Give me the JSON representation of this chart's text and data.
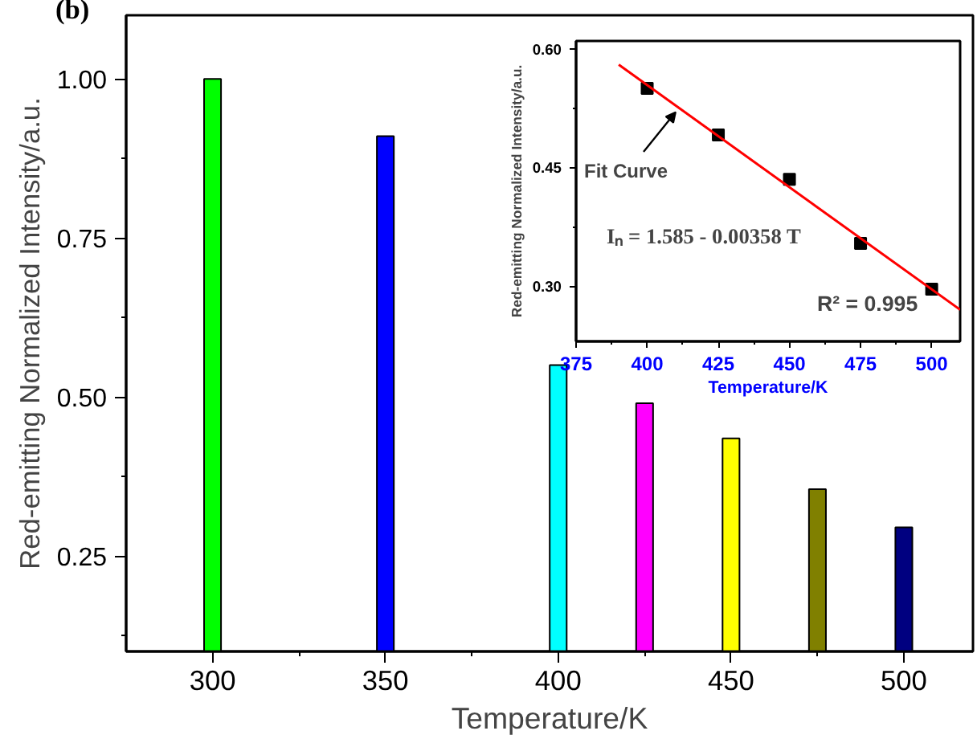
{
  "chart_data": [
    {
      "type": "bar",
      "title": "(b)",
      "xlabel": "Temperature/K",
      "ylabel": "Red-emitting Normalized Intensity/a.u.",
      "x": [
        300,
        350,
        400,
        425,
        450,
        475,
        500
      ],
      "values": [
        1.0,
        0.91,
        0.55,
        0.49,
        0.435,
        0.355,
        0.295
      ],
      "colors": [
        "#00ff00",
        "#0000ff",
        "#00ffff",
        "#ff00ff",
        "#ffff00",
        "#808000",
        "#000080"
      ],
      "xlim": [
        275,
        520
      ],
      "ylim": [
        0.1,
        1.1
      ],
      "xticks": [
        300,
        {
          "value": 325,
          "label": null
        },
        350,
        {
          "value": 375,
          "label": null
        },
        400,
        {
          "value": 425,
          "label": null
        },
        450,
        {
          "value": 475,
          "label": null
        },
        500
      ],
      "yticks": [
        {
          "value": 0.125,
          "label": null
        },
        {
          "value": 0.25,
          "label": "0.25"
        },
        {
          "value": 0.375,
          "label": null
        },
        {
          "value": 0.5,
          "label": "0.50"
        },
        {
          "value": 0.625,
          "label": null
        },
        {
          "value": 0.75,
          "label": "0.75"
        },
        {
          "value": 0.875,
          "label": null
        },
        {
          "value": 1.0,
          "label": "1.00"
        }
      ],
      "grid": false
    },
    {
      "type": "scatter",
      "xlabel": "Temperature/K",
      "ylabel": "Red-emitting Normalized Intensity/a.u.",
      "series": [
        {
          "type": "scatter",
          "color": "#000000",
          "marker": "square",
          "x": [
            400,
            425,
            450,
            475,
            500
          ],
          "values": [
            0.55,
            0.491,
            0.435,
            0.354,
            0.296
          ]
        },
        {
          "type": "line",
          "color": "#ff0000",
          "line_style": "solid",
          "x": [
            390,
            510
          ],
          "values": [
            0.58,
            0.27
          ]
        }
      ],
      "annotations": [
        {
          "text": "Fit Curve",
          "x": 410,
          "y": 0.52
        },
        "Iₙ = 1.585 - 0.00358 T",
        "R² = 0.995"
      ],
      "xlim": [
        375,
        510
      ],
      "ylim": [
        0.23,
        0.61
      ],
      "xticks": [
        375,
        {
          "value": 387.5,
          "label": null
        },
        400,
        {
          "value": 412.5,
          "label": null
        },
        425,
        {
          "value": 437.5,
          "label": null
        },
        450,
        {
          "value": 462.5,
          "label": null
        },
        475,
        {
          "value": 487.5,
          "label": null
        },
        500
      ],
      "yticks": [
        {
          "value": 0.3,
          "label": "0.30"
        },
        {
          "value": 0.375,
          "label": null
        },
        {
          "value": 0.45,
          "label": "0.45"
        },
        {
          "value": 0.525,
          "label": null
        },
        {
          "value": 0.6,
          "label": "0.60"
        }
      ],
      "grid": false
    }
  ]
}
